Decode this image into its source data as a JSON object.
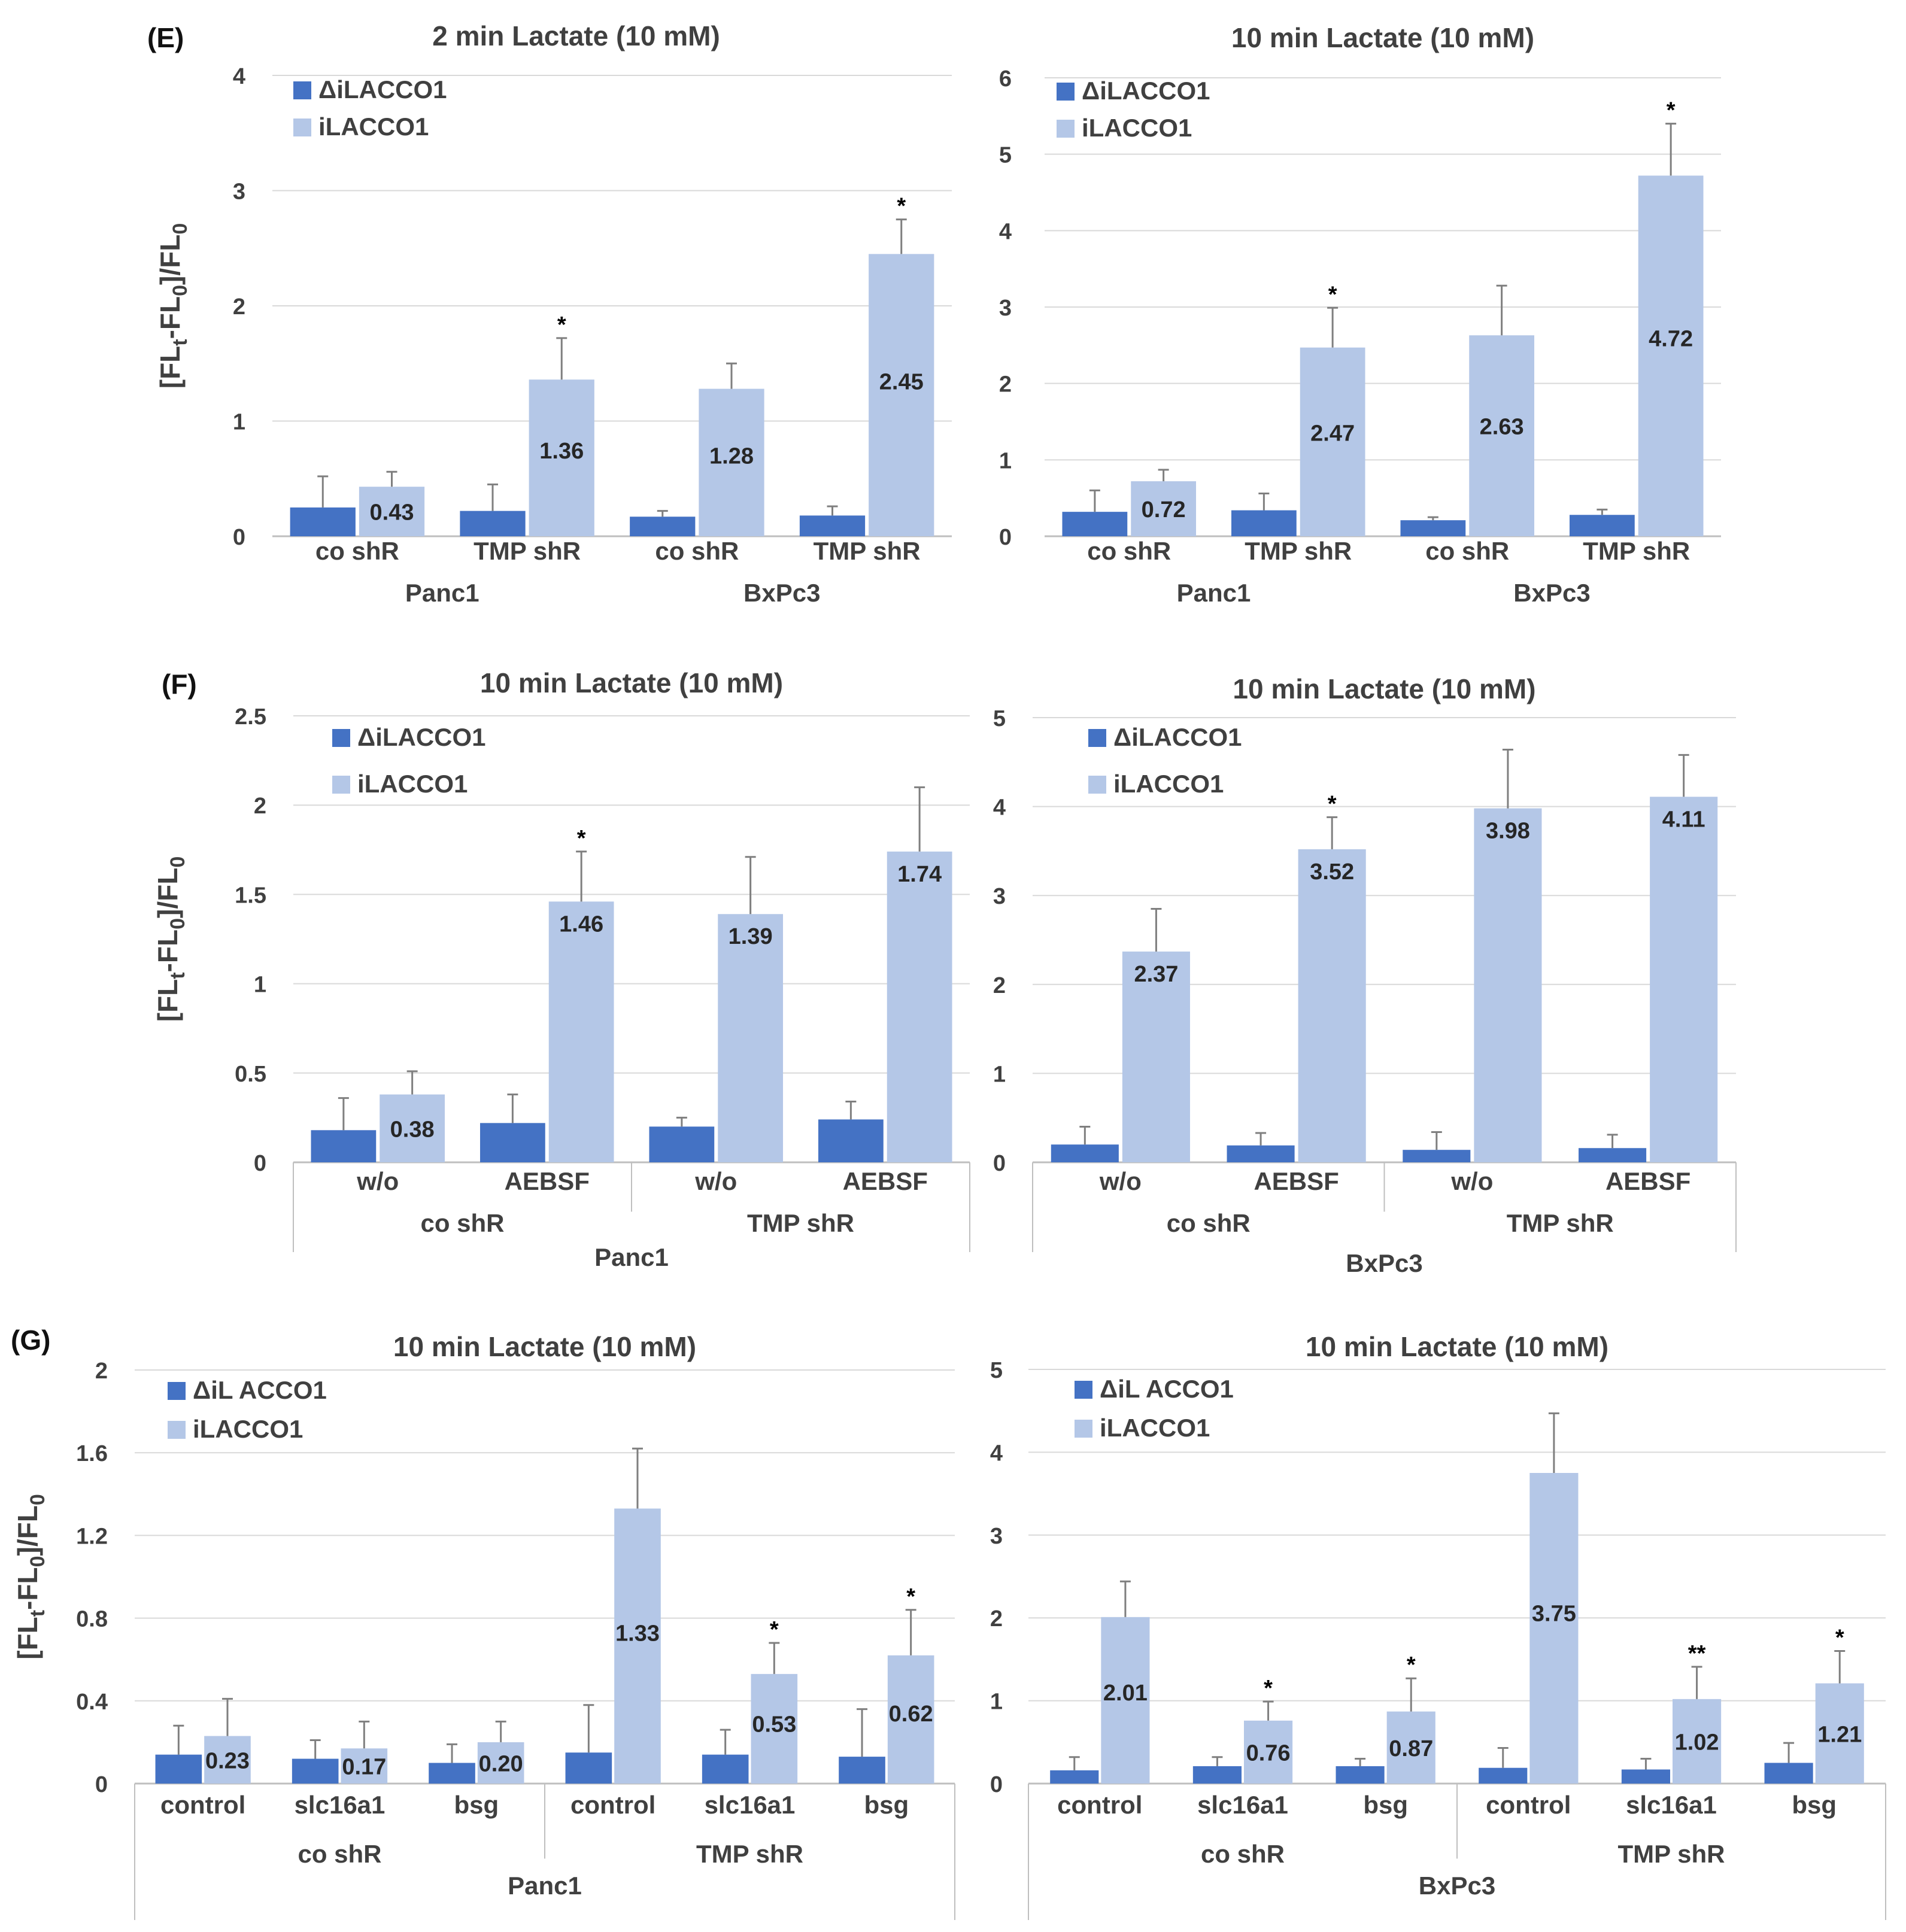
{
  "panels": {
    "E": "(E)",
    "F": "(F)",
    "G": "(G)"
  },
  "colors": {
    "delta": "#4472C4",
    "full": "#B4C7E7",
    "grid": "#D9D9D9",
    "axis_line": "#BFBFBF",
    "text": "#404040",
    "bar_label": "#262626"
  },
  "chart_data": [
    {
      "id": "E1",
      "panel": "E",
      "type": "bar",
      "title": "2 min Lactate (10 mM)",
      "ylabel": "[FLt-FL0]/FL0",
      "ylim": [
        0,
        4
      ],
      "yticks": [
        "0",
        "1",
        "2",
        "3",
        "4"
      ],
      "legend": [
        "ΔiLACCO1",
        "iLACCO1"
      ],
      "category_levels": [
        [
          "co shR",
          "TMP shR",
          "co shR",
          "TMP shR"
        ],
        [
          "Panc1",
          "BxPc3"
        ]
      ],
      "series": [
        {
          "name": "ΔiLACCO1",
          "values": [
            0.25,
            0.22,
            0.17,
            0.18
          ],
          "errors": [
            0.27,
            0.23,
            0.05,
            0.08
          ]
        },
        {
          "name": "iLACCO1",
          "values": [
            0.43,
            1.36,
            1.28,
            2.45
          ],
          "errors": [
            0.13,
            0.36,
            0.22,
            0.3
          ]
        }
      ],
      "data_labels": [
        "0.43",
        "1.36",
        "1.28",
        "2.45"
      ],
      "annotations": [
        "",
        "*",
        "",
        "*"
      ]
    },
    {
      "id": "E2",
      "panel": "E",
      "type": "bar",
      "title": "10 min Lactate (10 mM)",
      "ylabel": "",
      "ylim": [
        0,
        6
      ],
      "yticks": [
        "0",
        "1",
        "2",
        "3",
        "4",
        "5",
        "6"
      ],
      "legend": [
        "ΔiLACCO1",
        "iLACCO1"
      ],
      "category_levels": [
        [
          "co shR",
          "TMP shR",
          "co shR",
          "TMP shR"
        ],
        [
          "Panc1",
          "BxPc3"
        ]
      ],
      "series": [
        {
          "name": "ΔiLACCO1",
          "values": [
            0.32,
            0.34,
            0.21,
            0.28
          ],
          "errors": [
            0.28,
            0.22,
            0.04,
            0.07
          ]
        },
        {
          "name": "iLACCO1",
          "values": [
            0.72,
            2.47,
            2.63,
            4.72
          ],
          "errors": [
            0.15,
            0.52,
            0.65,
            0.68
          ]
        }
      ],
      "data_labels": [
        "0.72",
        "2.47",
        "2.63",
        "4.72"
      ],
      "annotations": [
        "",
        "*",
        "",
        "*"
      ]
    },
    {
      "id": "F1",
      "panel": "F",
      "type": "bar",
      "title": "10 min Lactate (10 mM)",
      "ylabel": "[FLt-FL0]/FL0",
      "ylim": [
        0,
        2.5
      ],
      "yticks": [
        "0",
        "0.5",
        "1",
        "1.5",
        "2",
        "2.5"
      ],
      "legend": [
        "ΔiLACCO1",
        "iLACCO1"
      ],
      "category_levels": [
        [
          "w/o",
          "AEBSF",
          "w/o",
          "AEBSF"
        ],
        [
          "co shR",
          "TMP shR"
        ],
        [
          "Panc1"
        ]
      ],
      "series": [
        {
          "name": "ΔiLACCO1",
          "values": [
            0.18,
            0.22,
            0.2,
            0.24
          ],
          "errors": [
            0.18,
            0.16,
            0.05,
            0.1
          ]
        },
        {
          "name": "iLACCO1",
          "values": [
            0.38,
            1.46,
            1.39,
            1.74
          ],
          "errors": [
            0.13,
            0.28,
            0.32,
            0.36
          ]
        }
      ],
      "data_labels": [
        "0.38",
        "1.46",
        "1.39",
        "1.74"
      ],
      "annotations": [
        "",
        "*",
        "",
        ""
      ]
    },
    {
      "id": "F2",
      "panel": "F",
      "type": "bar",
      "title": "10 min Lactate (10 mM)",
      "ylabel": "",
      "ylim": [
        0,
        5
      ],
      "yticks": [
        "0",
        "1",
        "2",
        "3",
        "4",
        "5"
      ],
      "legend": [
        "ΔiLACCO1",
        "iLACCO1"
      ],
      "category_levels": [
        [
          "w/o",
          "AEBSF",
          "w/o",
          "AEBSF"
        ],
        [
          "co shR",
          "TMP shR"
        ],
        [
          "BxPc3"
        ]
      ],
      "series": [
        {
          "name": "ΔiLACCO1",
          "values": [
            0.2,
            0.19,
            0.14,
            0.16
          ],
          "errors": [
            0.2,
            0.14,
            0.2,
            0.15
          ]
        },
        {
          "name": "iLACCO1",
          "values": [
            2.37,
            3.52,
            3.98,
            4.11
          ],
          "errors": [
            0.48,
            0.36,
            0.66,
            0.47
          ]
        }
      ],
      "data_labels": [
        "2.37",
        "3.52",
        "3.98",
        "4.11"
      ],
      "annotations": [
        "",
        "*",
        "",
        ""
      ]
    },
    {
      "id": "G1",
      "panel": "G",
      "type": "bar",
      "title": "10 min Lactate (10 mM)",
      "ylabel": "[FLt-FL0]/FL0",
      "ylim": [
        0,
        2
      ],
      "yticks": [
        "0",
        "0.4",
        "0.8",
        "1.2",
        "1.6",
        "2"
      ],
      "legend": [
        "ΔiL ACCO1",
        "iLACCO1"
      ],
      "category_levels": [
        [
          "control",
          "slc16a1",
          "bsg",
          "control",
          "slc16a1",
          "bsg"
        ],
        [
          "co shR",
          "TMP shR"
        ],
        [
          "Panc1"
        ]
      ],
      "series": [
        {
          "name": "ΔiL ACCO1",
          "values": [
            0.14,
            0.12,
            0.1,
            0.15,
            0.14,
            0.13
          ],
          "errors": [
            0.14,
            0.09,
            0.09,
            0.23,
            0.12,
            0.23
          ]
        },
        {
          "name": "iLACCO1",
          "values": [
            0.23,
            0.17,
            0.2,
            1.33,
            0.53,
            0.62
          ],
          "errors": [
            0.18,
            0.13,
            0.1,
            0.29,
            0.15,
            0.22
          ]
        }
      ],
      "data_labels": [
        "0.23",
        "0.17",
        "0.20",
        "1.33",
        "0.53",
        "0.62"
      ],
      "annotations": [
        "",
        "",
        "",
        "",
        "*",
        "*"
      ]
    },
    {
      "id": "G2",
      "panel": "G",
      "type": "bar",
      "title": "10 min Lactate (10 mM)",
      "ylabel": "",
      "ylim": [
        0,
        5
      ],
      "yticks": [
        "0",
        "1",
        "2",
        "3",
        "4",
        "5"
      ],
      "legend": [
        "ΔiL ACCO1",
        "iLACCO1"
      ],
      "category_levels": [
        [
          "control",
          "slc16a1",
          "bsg",
          "control",
          "slc16a1",
          "bsg"
        ],
        [
          "co shR",
          "TMP shR"
        ],
        [
          "BxPc3"
        ]
      ],
      "series": [
        {
          "name": "ΔiL ACCO1",
          "values": [
            0.16,
            0.21,
            0.21,
            0.19,
            0.17,
            0.25
          ],
          "errors": [
            0.16,
            0.11,
            0.09,
            0.24,
            0.13,
            0.24
          ]
        },
        {
          "name": "iLACCO1",
          "values": [
            2.01,
            0.76,
            0.87,
            3.75,
            1.02,
            1.21
          ],
          "errors": [
            0.43,
            0.23,
            0.4,
            0.72,
            0.39,
            0.39
          ]
        }
      ],
      "data_labels": [
        "2.01",
        "0.76",
        "0.87",
        "3.75",
        "1.02",
        "1.21"
      ],
      "annotations": [
        "",
        "*",
        "*",
        "",
        "**",
        "*"
      ]
    }
  ]
}
